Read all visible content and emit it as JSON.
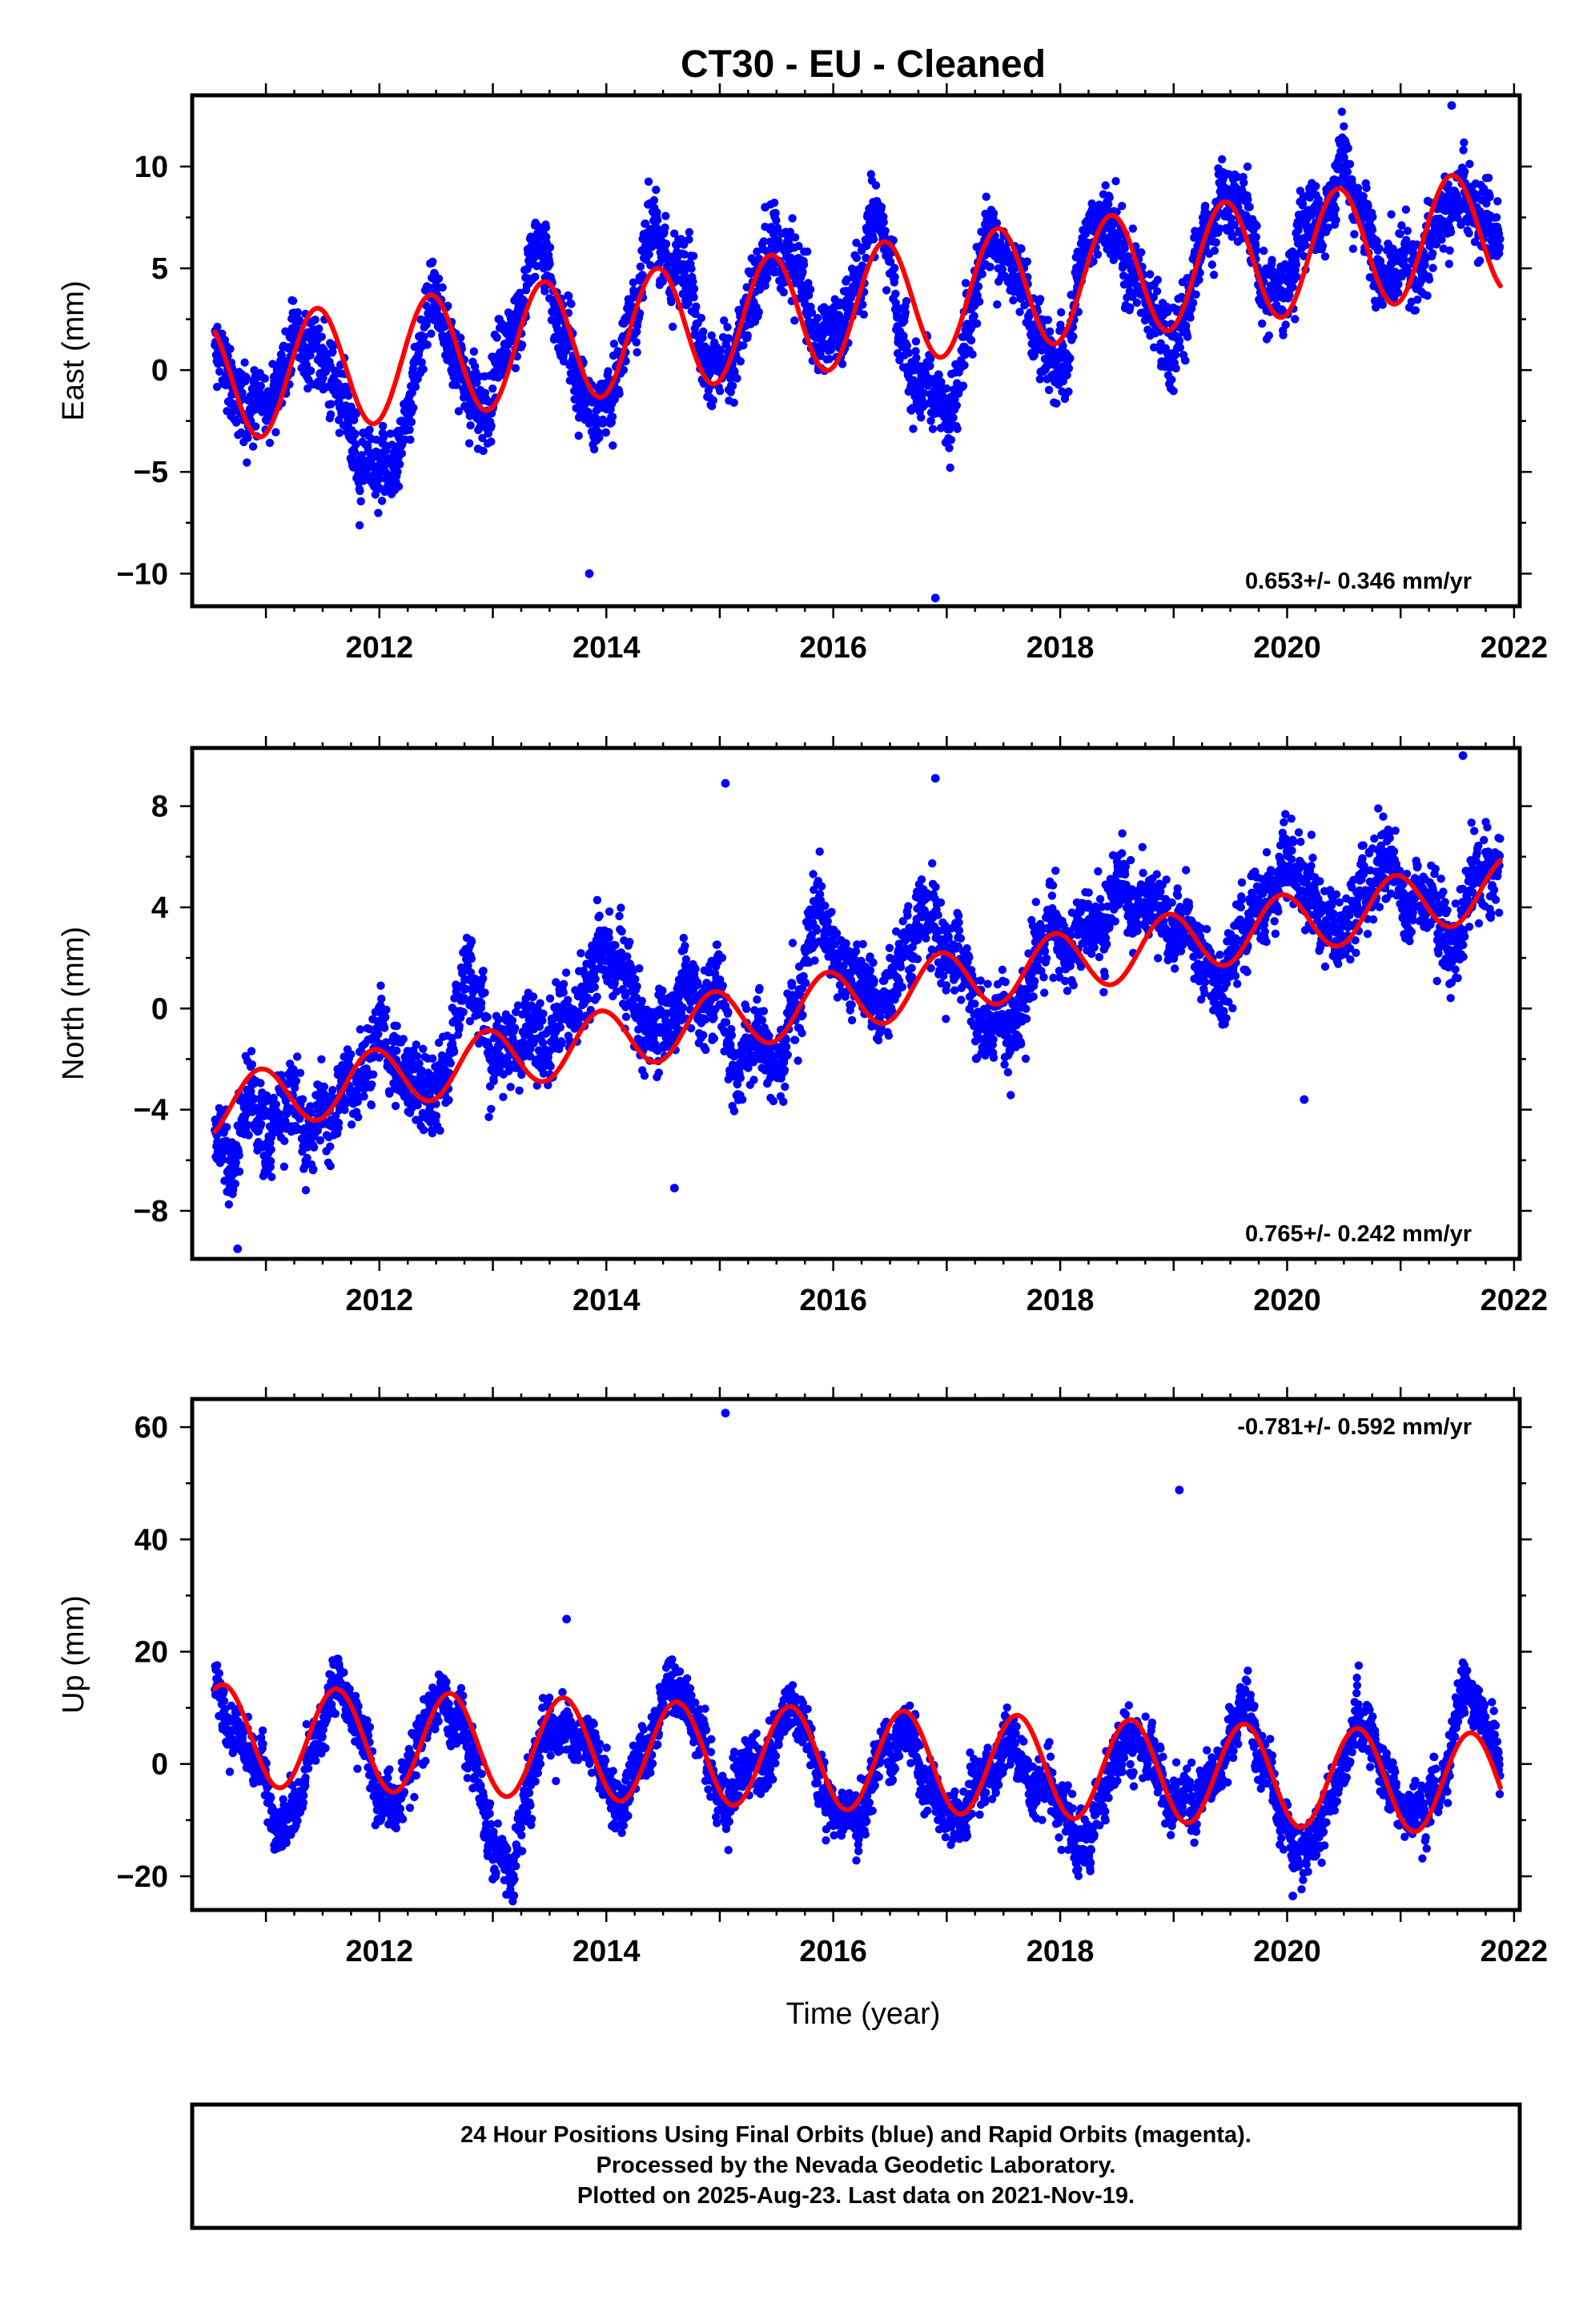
{
  "title": "CT30  - EU - Cleaned",
  "xlabel": "Time (year)",
  "footer": [
    "24 Hour Positions Using Final Orbits (blue) and Rapid Orbits (magenta).",
    "Processed by the Nevada Geodetic Laboratory.",
    "Plotted on 2025-Aug-23. Last data on 2021-Nov-19."
  ],
  "colors": {
    "points": "#0000ff",
    "fit": "#ff0000",
    "frame": "#000000"
  },
  "chart_data": [
    {
      "type": "scatter",
      "component": "east",
      "ylabel": "East (mm)",
      "rate_text": "0.653+/- 0.346 mm/yr",
      "rate_position": "bottom-right",
      "xlim": [
        2010.35,
        2022.05
      ],
      "ylim": [
        -11.6,
        13.5
      ],
      "xticks": [
        2012,
        2014,
        2016,
        2018,
        2020,
        2022
      ],
      "yticks": [
        -10,
        -5,
        0,
        5,
        10
      ],
      "x_start": 2010.55,
      "x_end": 2021.88,
      "fit": {
        "base": -0.55,
        "trend_mm_per_yr": 0.653,
        "t0": 2010.55,
        "annual_amp": 3.0,
        "annual_peak": 2011.45
      },
      "offset_knots": [
        [
          2010.55,
          -1.0
        ],
        [
          2012.2,
          0.3
        ],
        [
          2014.2,
          0.0
        ],
        [
          2016.2,
          0.2
        ],
        [
          2017.0,
          -4.5
        ],
        [
          2017.3,
          0.0
        ],
        [
          2019.3,
          0.4
        ],
        [
          2021.88,
          0.5
        ]
      ],
      "scatter_sd": 1.5,
      "outliers": [
        {
          "x": 2016.9,
          "y": -11.2
        },
        {
          "x": 2021.45,
          "y": 13.0
        },
        {
          "x": 2015.4,
          "y": 8.0
        },
        {
          "x": 2013.85,
          "y": -10.0
        }
      ]
    },
    {
      "type": "scatter",
      "component": "north",
      "ylabel": "North (mm)",
      "rate_text": "0.765+/- 0.242 mm/yr",
      "rate_position": "bottom-right",
      "xlim": [
        2010.35,
        2022.05
      ],
      "ylim": [
        -9.9,
        10.3
      ],
      "xticks": [
        2012,
        2014,
        2016,
        2018,
        2020,
        2022
      ],
      "yticks": [
        -8,
        -4,
        0,
        4,
        8
      ],
      "x_start": 2010.55,
      "x_end": 2021.88,
      "fit": {
        "base": -3.9,
        "trend_mm_per_yr": 0.765,
        "t0": 2010.55,
        "annual_amp": 1.2,
        "annual_peak": 2010.95
      },
      "offset_knots": [
        [
          2010.55,
          -0.3
        ],
        [
          2011.5,
          0.0
        ],
        [
          2014.8,
          1.8
        ],
        [
          2015.1,
          0.0
        ],
        [
          2016.9,
          1.2
        ],
        [
          2017.3,
          -1.0
        ],
        [
          2018.0,
          0.0
        ],
        [
          2021.88,
          0.3
        ]
      ],
      "scatter_sd": 1.3,
      "outliers": [
        {
          "x": 2015.05,
          "y": 8.9
        },
        {
          "x": 2016.9,
          "y": 9.1
        },
        {
          "x": 2021.55,
          "y": 10.0
        },
        {
          "x": 2010.75,
          "y": -9.5
        },
        {
          "x": 2014.6,
          "y": -7.1
        },
        {
          "x": 2020.15,
          "y": -3.6
        }
      ]
    },
    {
      "type": "scatter",
      "component": "up",
      "ylabel": "Up (mm)",
      "rate_text": "-0.781+/- 0.592 mm/yr",
      "rate_position": "top-right",
      "xlim": [
        2010.35,
        2022.05
      ],
      "ylim": [
        -26,
        65
      ],
      "xticks": [
        2012,
        2014,
        2016,
        2018,
        2020,
        2022
      ],
      "yticks": [
        -20,
        0,
        20,
        40,
        60
      ],
      "x_start": 2010.55,
      "x_end": 2021.88,
      "fit": {
        "base": 5.2,
        "trend_mm_per_yr": -0.781,
        "t0": 2010.55,
        "annual_amp": 9.0,
        "annual_peak": 2011.62
      },
      "offset_knots": [
        [
          2010.55,
          0.0
        ],
        [
          2021.88,
          0.0
        ]
      ],
      "scatter_sd": 4.2,
      "outliers": [
        {
          "x": 2015.05,
          "y": 62.5
        },
        {
          "x": 2019.05,
          "y": 48.8
        },
        {
          "x": 2013.0,
          "y": -20.5
        },
        {
          "x": 2020.05,
          "y": -23.5
        },
        {
          "x": 2013.65,
          "y": 25.8
        }
      ]
    }
  ]
}
